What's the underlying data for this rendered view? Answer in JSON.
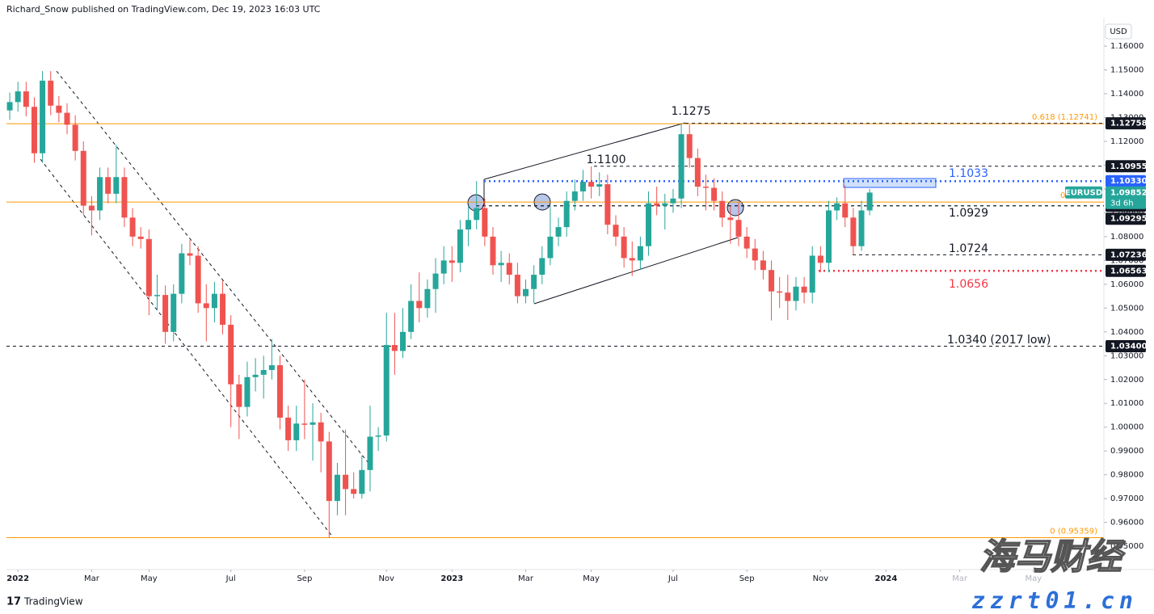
{
  "header": "Richard_Snow published on TradingView.com, Dec 19, 2023 16:03 UTC",
  "footer": "TradingView",
  "watermark": [
    "海马财经",
    "zzrt01.cn"
  ],
  "chart_data": {
    "type": "candlestick",
    "currency": "USD",
    "grid": false,
    "up_color": "#26a69a",
    "down_color": "#ef5350",
    "ylim": [
      0.9402,
      1.1719
    ],
    "xlim": [
      -0.4,
      133.6
    ],
    "yticks": [
      {
        "value": 0.95,
        "label": "0.95000"
      },
      {
        "value": 0.96,
        "label": "0.96000"
      },
      {
        "value": 0.97,
        "label": "0.97000"
      },
      {
        "value": 0.98,
        "label": "0.98000"
      },
      {
        "value": 0.99,
        "label": "0.99000"
      },
      {
        "value": 1.0,
        "label": "1.00000"
      },
      {
        "value": 1.01,
        "label": "1.01000"
      },
      {
        "value": 1.02,
        "label": "1.02000"
      },
      {
        "value": 1.03,
        "label": "1.03000"
      },
      {
        "value": 1.04,
        "label": "1.04000"
      },
      {
        "value": 1.05,
        "label": "1.05000"
      },
      {
        "value": 1.06,
        "label": "1.06000"
      },
      {
        "value": 1.07,
        "label": "1.07000"
      },
      {
        "value": 1.08,
        "label": "1.08000"
      },
      {
        "value": 1.09,
        "label": "1.09000"
      },
      {
        "value": 1.1,
        "label": "1.10000"
      },
      {
        "value": 1.11,
        "label": "1.11000"
      },
      {
        "value": 1.12,
        "label": "1.12000"
      },
      {
        "value": 1.13,
        "label": "1.13000"
      },
      {
        "value": 1.14,
        "label": "1.14000"
      },
      {
        "value": 1.15,
        "label": "1.15000"
      },
      {
        "value": 1.16,
        "label": "1.16000"
      }
    ],
    "xticks": [
      {
        "value": 1,
        "label": "2022"
      },
      {
        "value": 10,
        "label": "Mar"
      },
      {
        "value": 17,
        "label": "May"
      },
      {
        "value": 27,
        "label": "Jul"
      },
      {
        "value": 36,
        "label": "Sep"
      },
      {
        "value": 46,
        "label": "Nov"
      },
      {
        "value": 54,
        "label": "2023"
      },
      {
        "value": 63,
        "label": "Mar"
      },
      {
        "value": 71,
        "label": "May"
      },
      {
        "value": 81,
        "label": "Jul"
      },
      {
        "value": 90,
        "label": "Sep"
      },
      {
        "value": 99,
        "label": "Nov"
      },
      {
        "value": 107,
        "label": "2024"
      },
      {
        "value": 116,
        "label": "Mar"
      },
      {
        "value": 125,
        "label": "May"
      }
    ],
    "candles": [
      [
        1.133,
        1.1405,
        1.129,
        1.1365
      ],
      [
        1.1365,
        1.145,
        1.1325,
        1.141
      ],
      [
        1.141,
        1.145,
        1.1305,
        1.1345
      ],
      [
        1.1345,
        1.1385,
        1.111,
        1.115
      ],
      [
        1.115,
        1.1495,
        1.111,
        1.1455
      ],
      [
        1.1455,
        1.1495,
        1.131,
        1.135
      ],
      [
        1.135,
        1.139,
        1.128,
        1.132
      ],
      [
        1.132,
        1.136,
        1.123,
        1.127
      ],
      [
        1.127,
        1.131,
        1.112,
        1.116
      ],
      [
        1.116,
        1.12,
        1.089,
        1.093
      ],
      [
        1.093,
        1.097,
        1.0805,
        1.091
      ],
      [
        1.091,
        1.109,
        1.087,
        1.105
      ],
      [
        1.105,
        1.109,
        1.094,
        1.098
      ],
      [
        1.098,
        1.1185,
        1.094,
        1.105
      ],
      [
        1.105,
        1.109,
        1.084,
        1.088
      ],
      [
        1.088,
        1.092,
        1.076,
        1.08
      ],
      [
        1.08,
        1.084,
        1.075,
        1.079
      ],
      [
        1.079,
        1.083,
        1.047,
        1.055
      ],
      [
        1.055,
        1.064,
        1.049,
        1.0555
      ],
      [
        1.0555,
        1.0595,
        1.035,
        1.04
      ],
      [
        1.04,
        1.06,
        1.036,
        1.056
      ],
      [
        1.056,
        1.077,
        1.052,
        1.073
      ],
      [
        1.073,
        1.0785,
        1.068,
        1.072
      ],
      [
        1.072,
        1.076,
        1.048,
        1.052
      ],
      [
        1.052,
        1.06,
        1.036,
        1.05
      ],
      [
        1.05,
        1.061,
        1.044,
        1.056
      ],
      [
        1.056,
        1.0615,
        1.039,
        1.043
      ],
      [
        1.043,
        1.047,
        1.0,
        1.018
      ],
      [
        1.018,
        1.022,
        0.995,
        1.0085
      ],
      [
        1.0085,
        1.0275,
        1.0045,
        1.021
      ],
      [
        1.021,
        1.029,
        1.015,
        1.022
      ],
      [
        1.022,
        1.03,
        1.012,
        1.024
      ],
      [
        1.024,
        1.037,
        1.02,
        1.026
      ],
      [
        1.026,
        1.03,
        0.999,
        1.004
      ],
      [
        1.004,
        1.009,
        0.99,
        0.9945
      ],
      [
        0.9945,
        1.009,
        0.99,
        1.0015
      ],
      [
        1.0015,
        1.02,
        0.995,
        1.001
      ],
      [
        1.001,
        1.01,
        0.986,
        1.002
      ],
      [
        1.002,
        1.006,
        0.981,
        0.994
      ],
      [
        0.994,
        0.998,
        0.9536,
        0.969
      ],
      [
        0.969,
        0.985,
        0.963,
        0.98
      ],
      [
        0.98,
        0.999,
        0.963,
        0.974
      ],
      [
        0.974,
        0.981,
        0.97,
        0.972
      ],
      [
        0.972,
        0.988,
        0.97,
        0.982
      ],
      [
        0.982,
        1.009,
        0.973,
        0.996
      ],
      [
        0.996,
        1.0,
        0.99,
        0.9965
      ],
      [
        0.9965,
        1.048,
        0.994,
        1.0345
      ],
      [
        1.0345,
        1.048,
        1.022,
        1.032
      ],
      [
        1.032,
        1.05,
        1.029,
        1.04
      ],
      [
        1.04,
        1.06,
        1.037,
        1.053
      ],
      [
        1.053,
        1.065,
        1.044,
        1.05
      ],
      [
        1.05,
        1.062,
        1.046,
        1.058
      ],
      [
        1.058,
        1.071,
        1.048,
        1.0645
      ],
      [
        1.0645,
        1.076,
        1.06,
        1.07
      ],
      [
        1.07,
        1.076,
        1.061,
        1.069
      ],
      [
        1.069,
        1.087,
        1.065,
        1.083
      ],
      [
        1.083,
        1.093,
        1.076,
        1.087
      ],
      [
        1.087,
        1.1033,
        1.083,
        1.092
      ],
      [
        1.092,
        1.096,
        1.076,
        1.08
      ],
      [
        1.08,
        1.084,
        1.064,
        1.068
      ],
      [
        1.068,
        1.074,
        1.061,
        1.069
      ],
      [
        1.069,
        1.073,
        1.06,
        1.064
      ],
      [
        1.064,
        1.069,
        1.052,
        1.055
      ],
      [
        1.055,
        1.062,
        1.052,
        1.058
      ],
      [
        1.058,
        1.068,
        1.052,
        1.064
      ],
      [
        1.064,
        1.076,
        1.06,
        1.071
      ],
      [
        1.071,
        1.093,
        1.068,
        1.08
      ],
      [
        1.08,
        1.088,
        1.076,
        1.084
      ],
      [
        1.084,
        1.099,
        1.08,
        1.095
      ],
      [
        1.095,
        1.104,
        1.091,
        1.099
      ],
      [
        1.099,
        1.108,
        1.095,
        1.103
      ],
      [
        1.103,
        1.1095,
        1.096,
        1.101
      ],
      [
        1.101,
        1.107,
        1.097,
        1.102
      ],
      [
        1.102,
        1.106,
        1.081,
        1.085
      ],
      [
        1.085,
        1.089,
        1.076,
        1.08
      ],
      [
        1.08,
        1.084,
        1.067,
        1.071
      ],
      [
        1.071,
        1.078,
        1.0635,
        1.07
      ],
      [
        1.07,
        1.08,
        1.066,
        1.076
      ],
      [
        1.076,
        1.099,
        1.072,
        1.094
      ],
      [
        1.094,
        1.101,
        1.089,
        1.093
      ],
      [
        1.093,
        1.098,
        1.083,
        1.094
      ],
      [
        1.094,
        1.1,
        1.09,
        1.096
      ],
      [
        1.096,
        1.1275,
        1.092,
        1.123
      ],
      [
        1.123,
        1.127,
        1.109,
        1.113
      ],
      [
        1.113,
        1.117,
        1.097,
        1.101
      ],
      [
        1.101,
        1.106,
        1.091,
        1.1005
      ],
      [
        1.1005,
        1.1045,
        1.091,
        1.095
      ],
      [
        1.095,
        1.099,
        1.084,
        1.088
      ],
      [
        1.088,
        1.093,
        1.077,
        1.087
      ],
      [
        1.087,
        1.0945,
        1.076,
        1.08
      ],
      [
        1.08,
        1.084,
        1.071,
        1.075
      ],
      [
        1.075,
        1.079,
        1.066,
        1.07
      ],
      [
        1.07,
        1.074,
        1.062,
        1.066
      ],
      [
        1.066,
        1.07,
        1.0448,
        1.057
      ],
      [
        1.057,
        1.063,
        1.05,
        1.0565
      ],
      [
        1.0565,
        1.064,
        1.045,
        1.053
      ],
      [
        1.053,
        1.063,
        1.049,
        1.059
      ],
      [
        1.059,
        1.063,
        1.052,
        1.0565
      ],
      [
        1.0565,
        1.076,
        1.052,
        1.072
      ],
      [
        1.072,
        1.076,
        1.065,
        1.069
      ],
      [
        1.069,
        1.095,
        1.065,
        1.091
      ],
      [
        1.091,
        1.0965,
        1.087,
        1.094
      ],
      [
        1.094,
        1.1015,
        1.084,
        1.088
      ],
      [
        1.088,
        1.092,
        1.0724,
        1.076
      ],
      [
        1.076,
        1.095,
        1.074,
        1.091
      ],
      [
        1.091,
        1.1,
        1.089,
        1.0985
      ]
    ],
    "fibs": [
      {
        "level": {
          "value": 1.12741,
          "label": "0.618 (1.12741)"
        },
        "color": "#ff9800"
      },
      {
        "level": {
          "value": 1.0945,
          "label": "0.5 ("
        },
        "color": "#ff9800"
      },
      {
        "level": {
          "value": 0.95359,
          "label": "0 (0.95359)"
        },
        "color": "#ff9800"
      }
    ],
    "levels": [
      {
        "price": 1.12758,
        "style": "dashed",
        "color": "#131722",
        "note": "1.1275"
      },
      {
        "price": 1.10955,
        "style": "dashed",
        "color": "#131722",
        "note": "1.1100"
      },
      {
        "price": {
          "value": 1.1033,
          "label": "1.10330"
        },
        "style": "dotted",
        "color": "#2962ff",
        "badge_color": "#2962ff",
        "note": "1.1033"
      },
      {
        "price": 1.09295,
        "style": "dashed",
        "color": "#131722",
        "note": "1.0929"
      },
      {
        "price": 1.09295,
        "style": "dashed",
        "color": "#131722"
      },
      {
        "price": 1.07236,
        "style": "dashed",
        "color": "#131722",
        "note": "1.0724"
      },
      {
        "price": 1.06563,
        "style": "dotted",
        "color": "#f23645",
        "note": "1.0656"
      },
      {
        "price": {
          "value": 1.034,
          "label": "1.03400"
        },
        "style": "dashed",
        "color": "#131722",
        "note": "1.0340 (2017 low)"
      }
    ],
    "last": {
      "symbol": "EURUSD",
      "price": 1.09852,
      "countdown": "3d 6h",
      "color": "#26a69a"
    }
  }
}
